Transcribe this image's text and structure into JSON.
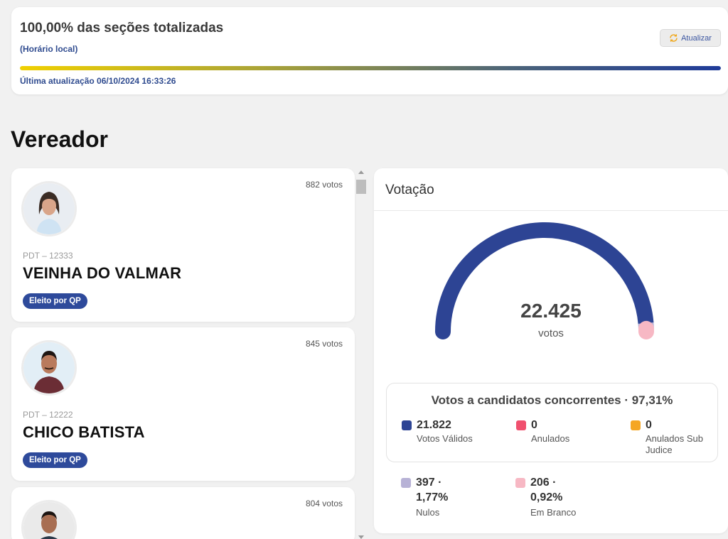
{
  "status": {
    "title": "100,00% das seções totalizadas",
    "subtitle": "(Horário local)",
    "refresh_label": "Atualizar",
    "progress": 1.0,
    "last_update": "Última atualização 06/10/2024 16:33:26"
  },
  "section_title": "Vereador",
  "candidates": [
    {
      "votes": "882 votos",
      "party": "PDT – 12333",
      "name": "VEINHA DO VALMAR",
      "badge": "Eleito por QP",
      "avatar": "woman-portrait"
    },
    {
      "votes": "845 votos",
      "party": "PDT – 12222",
      "name": "CHICO BATISTA",
      "badge": "Eleito por QP",
      "avatar": "man-portrait"
    },
    {
      "votes": "804 votos",
      "party": "",
      "name": "",
      "badge": "",
      "avatar": "man-portrait"
    }
  ],
  "votacao": {
    "header": "Votação",
    "total": "22.425",
    "total_unit": "votos",
    "gauge_segments": [
      {
        "name": "valid",
        "fraction": 0.9731,
        "color": "#2d4494"
      },
      {
        "name": "null",
        "fraction": 0.0177,
        "color": "#b7b2d6"
      },
      {
        "name": "blank",
        "fraction": 0.0092,
        "color": "#f7b8c4"
      }
    ],
    "summary_title": "Votos a candidatos concorrentes · 97,31%",
    "legend": [
      {
        "value": "21.822",
        "label": "Votos Válidos",
        "color": "#2d4494"
      },
      {
        "value": "0",
        "label": "Anulados",
        "color": "#f0506e"
      },
      {
        "value": "0",
        "label": "Anulados Sub Judice",
        "color": "#f5a623"
      }
    ],
    "others": [
      {
        "value": "397 ·",
        "percent": "1,77%",
        "label": "Nulos",
        "color": "#b7b2d6"
      },
      {
        "value": "206 ·",
        "percent": "0,92%",
        "label": "Em Branco",
        "color": "#f7b8c4"
      }
    ]
  }
}
